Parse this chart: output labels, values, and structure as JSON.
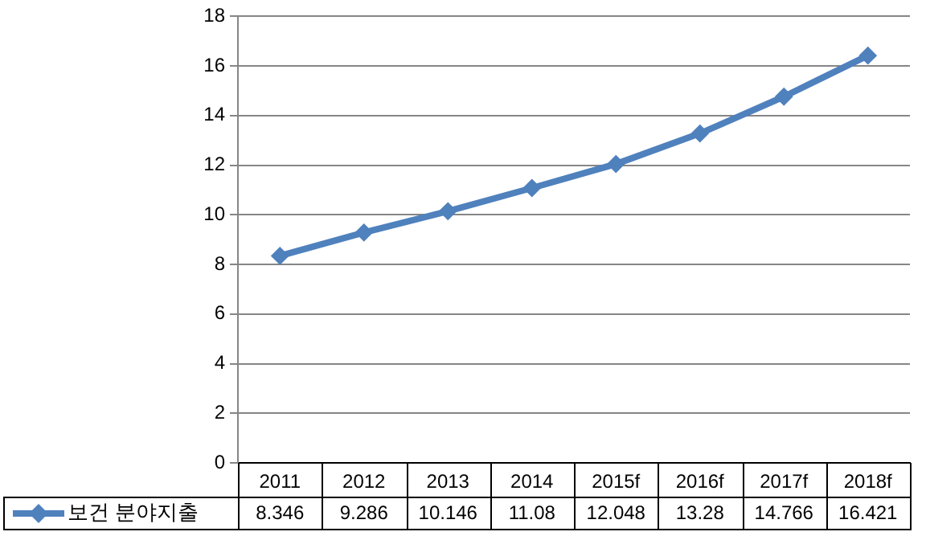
{
  "chart_data": {
    "type": "line",
    "categories": [
      "2011",
      "2012",
      "2013",
      "2014",
      "2015f",
      "2016f",
      "2017f",
      "2018f"
    ],
    "series": [
      {
        "name": "보건 분야지출",
        "color": "#4f81bd",
        "values": [
          8.346,
          9.286,
          10.146,
          11.08,
          12.048,
          13.28,
          14.766,
          16.421
        ]
      }
    ],
    "ylim": [
      0,
      18
    ],
    "yticks": [
      0,
      2,
      4,
      6,
      8,
      10,
      12,
      14,
      16,
      18
    ],
    "grid": "y",
    "marker": "diamond",
    "line_style": "solid",
    "data_labels": true,
    "legend": "bottom left"
  }
}
